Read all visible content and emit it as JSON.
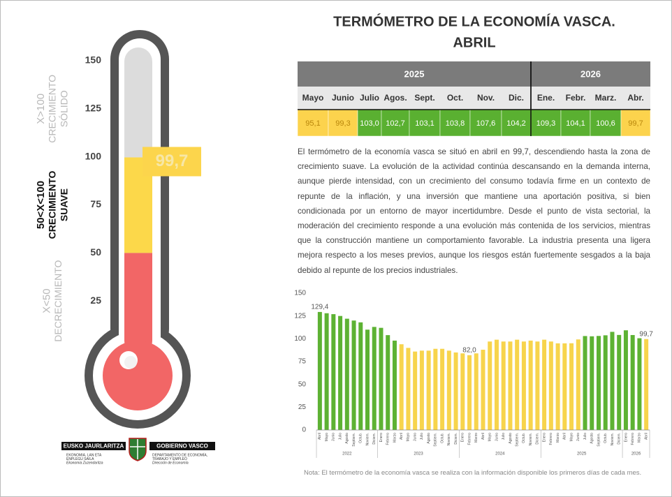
{
  "title": [
    "TERMÓMETRO DE LA ECONOMÍA VASCA.",
    "ABRIL"
  ],
  "table": {
    "years": [
      {
        "label": "2025",
        "span": 8
      },
      {
        "label": "2026",
        "span": 4
      }
    ],
    "months": [
      "Mayo",
      "Junio",
      "Julio",
      "Agos.",
      "Sept.",
      "Oct.",
      "Nov.",
      "Dic.",
      "Ene.",
      "Febr.",
      "Marz.",
      "Abr."
    ],
    "values": [
      "95,1",
      "99,3",
      "103,0",
      "102,7",
      "103,1",
      "103,8",
      "107,6",
      "104,2",
      "109,3",
      "104,1",
      "100,6",
      "99,7"
    ],
    "colors": [
      "#fcd34d",
      "#fcd34d",
      "#5ab031",
      "#5ab031",
      "#5ab031",
      "#5ab031",
      "#5ab031",
      "#5ab031",
      "#5ab031",
      "#5ab031",
      "#5ab031",
      "#fcd34d"
    ]
  },
  "text": "El termómetro de la economía vasca se situó en abril en 99,7, descendiendo hasta la zona de crecimiento suave. La evolución de la actividad continúa descansando en la demanda interna, aunque pierde intensidad, con un crecimiento del consumo todavía firme en un contexto de repunte de la inflación, y una inversión que mantiene una aportación positiva, si bien condicionada por un entorno de mayor incertidumbre. Desde el punto de vista sectorial, la moderación del crecimiento responde a una evolución más contenida de los servicios, mientras que la construcción mantiene un comportamiento favorable. La industria presenta una ligera mejora respecto a los meses previos, aunque los riesgos están fuertemente sesgados a la baja debido al repunte de los precios industriales.",
  "note": "Nota: El termómetro de la economía vasca se realiza con la información disponible los primeros días de cada mes.",
  "thermometer": {
    "value": 99.7,
    "value_label": "99,7",
    "ylim": [
      0,
      150
    ],
    "yticks": [
      25,
      50,
      75,
      100,
      125,
      150
    ],
    "empty_color": "#dcdcdc",
    "zones": [
      {
        "from": 0,
        "to": 50,
        "fill": "#f26666",
        "label": [
          "X<50",
          "DECRECIMIENTO"
        ],
        "label_color": "#b8b8b8"
      },
      {
        "from": 50,
        "to": 100,
        "fill": "#fcd84a",
        "label": [
          "50<X<100",
          "CRECIMIENTO",
          "SUAVE"
        ],
        "label_color": "#111111",
        "bold": true
      },
      {
        "from": 100,
        "to": 150,
        "label": [
          "X>100",
          "CRECIMIENTO",
          "SÓLIDO"
        ],
        "label_color": "#b8b8b8"
      }
    ]
  },
  "logo": {
    "left": "EUSKO JAURLARITZA",
    "right": "GOBIERNO VASCO",
    "left_sub": [
      "EKONOMIA, LAN ETA",
      "ENPLEGU SAILA",
      "Ekonomia Zuzendaritza"
    ],
    "right_sub": [
      "DEPARTAMENTO DE ECONOMÍA,",
      "TRABAJO Y EMPLEO",
      "Dirección de Economía"
    ]
  },
  "chart_data": {
    "type": "bar",
    "categories": [
      "Abril",
      "Mayo",
      "Junio",
      "Julio",
      "Agosto",
      "Septiem.",
      "Octub.",
      "Noviem.",
      "Diciem.",
      "Enero",
      "Febrero",
      "Marzo",
      "Abril",
      "Mayo",
      "Junio",
      "Julio",
      "Agosto",
      "Septiem.",
      "Octub.",
      "Noviem.",
      "Diciem.",
      "Enero",
      "Febrero",
      "Marzo",
      "Abril",
      "Mayo",
      "Junio",
      "Julio",
      "Agosto",
      "Septiem.",
      "Octub.",
      "Noviem.",
      "Diciem.",
      "Enero",
      "Febrero",
      "Marzo",
      "Abril",
      "Mayo",
      "Junio",
      "Julio",
      "Agosto",
      "Septiem.",
      "Octub.",
      "Noviem.",
      "Diciem.",
      "Enero",
      "Febrero",
      "Marzo",
      "Abril"
    ],
    "values": [
      129.4,
      128,
      127,
      125,
      122,
      120,
      118,
      110,
      113,
      112,
      104,
      98,
      94,
      90,
      86,
      87,
      87,
      89,
      89,
      87,
      85,
      84,
      82.0,
      84,
      88,
      97,
      99,
      97,
      97,
      99,
      97,
      98,
      97,
      99,
      97,
      95,
      95,
      95.1,
      99.3,
      103.0,
      102.7,
      103.1,
      103.8,
      107.6,
      104.2,
      109.3,
      104.1,
      100.6,
      99.7
    ],
    "value_labels": [
      "129,4",
      null,
      null,
      null,
      null,
      null,
      null,
      null,
      null,
      null,
      null,
      null,
      null,
      null,
      null,
      null,
      null,
      null,
      null,
      null,
      null,
      null,
      "82,0",
      null,
      null,
      null,
      null,
      null,
      null,
      null,
      null,
      null,
      null,
      null,
      null,
      null,
      null,
      null,
      null,
      null,
      null,
      null,
      null,
      null,
      null,
      null,
      null,
      null,
      "99,7"
    ],
    "colors": [
      "#5db233",
      "#5db233",
      "#5db233",
      "#5db233",
      "#5db233",
      "#5db233",
      "#5db233",
      "#5db233",
      "#5db233",
      "#5db233",
      "#5db233",
      "#5db233",
      "#f7d44c",
      "#f7d44c",
      "#f7d44c",
      "#f7d44c",
      "#f7d44c",
      "#f7d44c",
      "#f7d44c",
      "#f7d44c",
      "#f7d44c",
      "#f7d44c",
      "#f7d44c",
      "#f7d44c",
      "#f7d44c",
      "#f7d44c",
      "#f7d44c",
      "#f7d44c",
      "#f7d44c",
      "#f7d44c",
      "#f7d44c",
      "#f7d44c",
      "#f7d44c",
      "#f7d44c",
      "#f7d44c",
      "#f7d44c",
      "#f7d44c",
      "#f7d44c",
      "#f7d44c",
      "#5db233",
      "#5db233",
      "#5db233",
      "#5db233",
      "#5db233",
      "#5db233",
      "#5db233",
      "#5db233",
      "#5db233",
      "#f7d44c"
    ],
    "ylim": [
      0,
      150
    ],
    "yticks": [
      0,
      25,
      50,
      75,
      100,
      125,
      150
    ],
    "x_groups": [
      {
        "label": "2022",
        "months": 9
      },
      {
        "label": "2023",
        "months": 12
      },
      {
        "label": "2024",
        "months": 12
      },
      {
        "label": "2025",
        "months": 12
      },
      {
        "label": "2026",
        "months": 4
      }
    ]
  }
}
